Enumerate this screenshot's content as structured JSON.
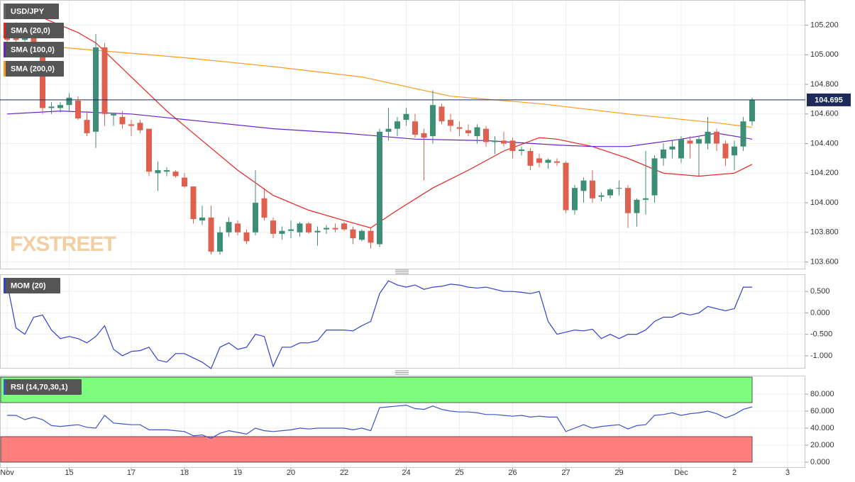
{
  "chart_data": [
    {
      "type": "candlestick",
      "name": "USD/JPY",
      "watermark": "FXSTREET",
      "up_color": "#3d8e77",
      "down_color": "#e0604f",
      "last_color": "#1d2b5b",
      "xlim": [
        -0.8,
        90
      ],
      "ylim": [
        103.55,
        105.37
      ],
      "yticks": [
        {
          "value": 103.6,
          "label": "103.600"
        },
        {
          "value": 103.8,
          "label": "103.800"
        },
        {
          "value": 104,
          "label": "104.000"
        },
        {
          "value": 104.2,
          "label": "104.200"
        },
        {
          "value": 104.4,
          "label": "104.400"
        },
        {
          "value": 104.6,
          "label": "104.600"
        },
        {
          "value": 104.8,
          "label": "104.800"
        },
        {
          "value": 105,
          "label": "105.000"
        },
        {
          "value": 105.2,
          "label": "105.200"
        }
      ],
      "ohlc": [
        [
          105.12,
          105.2,
          105.05,
          105.1
        ],
        [
          105.2,
          105.22,
          105.08,
          105.1
        ],
        [
          105.1,
          105.18,
          105.05,
          105.15
        ],
        [
          105.12,
          105.2,
          105.0,
          105.02
        ],
        [
          105.02,
          105.05,
          104.6,
          104.64
        ],
        [
          104.64,
          104.68,
          104.6,
          104.65
        ],
        [
          104.64,
          104.68,
          104.61,
          104.66
        ],
        [
          104.66,
          104.74,
          104.62,
          104.71
        ],
        [
          104.69,
          104.72,
          104.56,
          104.57
        ],
        [
          104.56,
          104.62,
          104.45,
          104.47
        ],
        [
          104.48,
          105.14,
          104.37,
          105.05
        ],
        [
          105.05,
          105.08,
          104.52,
          104.6
        ],
        [
          104.59,
          104.61,
          104.52,
          104.6
        ],
        [
          104.58,
          104.62,
          104.5,
          104.53
        ],
        [
          104.53,
          104.56,
          104.45,
          104.52
        ],
        [
          104.54,
          104.56,
          104.47,
          104.49
        ],
        [
          104.5,
          104.5,
          104.18,
          104.21
        ],
        [
          104.2,
          104.28,
          104.08,
          104.22
        ],
        [
          104.21,
          104.24,
          104.18,
          104.22
        ],
        [
          104.21,
          104.22,
          104.17,
          104.18
        ],
        [
          104.17,
          104.2,
          104.1,
          104.11
        ],
        [
          104.11,
          104.11,
          103.86,
          103.89
        ],
        [
          103.88,
          103.98,
          103.85,
          103.9
        ],
        [
          103.9,
          103.98,
          103.65,
          103.67
        ],
        [
          103.67,
          103.84,
          103.65,
          103.8
        ],
        [
          103.8,
          103.9,
          103.77,
          103.87
        ],
        [
          103.86,
          103.88,
          103.78,
          103.8
        ],
        [
          103.8,
          103.82,
          103.72,
          103.74
        ],
        [
          103.8,
          104.22,
          103.78,
          104.0
        ],
        [
          104.03,
          104.1,
          103.88,
          103.9
        ],
        [
          103.88,
          103.9,
          103.76,
          103.79
        ],
        [
          103.79,
          103.84,
          103.75,
          103.81
        ],
        [
          103.81,
          103.88,
          103.76,
          103.82
        ],
        [
          103.8,
          103.87,
          103.77,
          103.86
        ],
        [
          103.86,
          103.87,
          103.79,
          103.8
        ],
        [
          103.8,
          103.84,
          103.71,
          103.81
        ],
        [
          103.82,
          103.85,
          103.79,
          103.83
        ],
        [
          103.83,
          103.86,
          103.8,
          103.82
        ],
        [
          103.86,
          103.87,
          103.81,
          103.82
        ],
        [
          103.82,
          103.84,
          103.72,
          103.76
        ],
        [
          103.75,
          103.82,
          103.74,
          103.81
        ],
        [
          103.81,
          103.83,
          103.69,
          103.73
        ],
        [
          103.72,
          104.5,
          103.7,
          104.48
        ],
        [
          104.48,
          104.64,
          104.42,
          104.5
        ],
        [
          104.5,
          104.58,
          104.45,
          104.55
        ],
        [
          104.56,
          104.64,
          104.52,
          104.6
        ],
        [
          104.55,
          104.6,
          104.44,
          104.46
        ],
        [
          104.47,
          104.5,
          104.15,
          104.44
        ],
        [
          104.45,
          104.76,
          104.4,
          104.66
        ],
        [
          104.65,
          104.67,
          104.53,
          104.55
        ],
        [
          104.56,
          104.6,
          104.48,
          104.52
        ],
        [
          104.51,
          104.55,
          104.45,
          104.5
        ],
        [
          104.49,
          104.53,
          104.45,
          104.47
        ],
        [
          104.45,
          104.53,
          104.4,
          104.51
        ],
        [
          104.5,
          104.52,
          104.38,
          104.41
        ],
        [
          104.41,
          104.45,
          104.33,
          104.42
        ],
        [
          104.42,
          104.48,
          104.38,
          104.4
        ],
        [
          104.42,
          104.44,
          104.3,
          104.35
        ],
        [
          104.35,
          104.38,
          104.32,
          104.36
        ],
        [
          104.35,
          104.37,
          104.22,
          104.25
        ],
        [
          104.3,
          104.33,
          104.24,
          104.27
        ],
        [
          104.27,
          104.3,
          104.23,
          104.29
        ],
        [
          104.28,
          104.3,
          104.25,
          104.27
        ],
        [
          104.27,
          104.28,
          103.93,
          103.95
        ],
        [
          103.95,
          104.12,
          103.92,
          104.1
        ],
        [
          104.08,
          104.17,
          104.0,
          104.15
        ],
        [
          104.15,
          104.22,
          104.0,
          104.03
        ],
        [
          104.04,
          104.07,
          104.01,
          104.05
        ],
        [
          104.05,
          104.1,
          104.03,
          104.09
        ],
        [
          104.1,
          104.15,
          104.05,
          104.1
        ],
        [
          104.1,
          104.12,
          103.83,
          103.93
        ],
        [
          103.93,
          104.03,
          103.84,
          104.02
        ],
        [
          104.02,
          104.35,
          103.92,
          104.03
        ],
        [
          104.05,
          104.32,
          104.0,
          104.3
        ],
        [
          104.3,
          104.4,
          104.25,
          104.36
        ],
        [
          104.36,
          104.42,
          104.3,
          104.38
        ],
        [
          104.3,
          104.45,
          104.27,
          104.43
        ],
        [
          104.42,
          104.45,
          104.3,
          104.4
        ],
        [
          104.4,
          104.45,
          104.18,
          104.43
        ],
        [
          104.4,
          104.58,
          104.36,
          104.48
        ],
        [
          104.48,
          104.5,
          104.35,
          104.4
        ],
        [
          104.4,
          104.42,
          104.25,
          104.3
        ],
        [
          104.32,
          104.42,
          104.22,
          104.38
        ],
        [
          104.38,
          104.58,
          104.35,
          104.55
        ],
        [
          104.55,
          104.71,
          104.52,
          104.695
        ]
      ],
      "series": [
        {
          "name": "SMA (20,0)",
          "color": "#e8221f",
          "x": [
            0,
            4,
            8,
            10,
            14,
            18,
            22,
            26,
            30,
            34,
            38,
            41,
            44,
            48,
            52,
            56,
            60,
            62,
            66,
            70,
            74,
            78,
            82,
            84
          ],
          "values": [
            105.28,
            105.25,
            105.15,
            105.08,
            104.85,
            104.62,
            104.42,
            104.22,
            104.05,
            103.95,
            103.88,
            103.83,
            103.95,
            104.1,
            104.22,
            104.35,
            104.44,
            104.43,
            104.38,
            104.3,
            104.2,
            104.18,
            104.2,
            104.26
          ]
        },
        {
          "name": "SMA (100,0)",
          "color": "#6a1fd0",
          "x": [
            0,
            6,
            14,
            22,
            30,
            38,
            46,
            54,
            62,
            66,
            70,
            76,
            80,
            84
          ],
          "values": [
            104.6,
            104.62,
            104.6,
            104.55,
            104.5,
            104.47,
            104.43,
            104.42,
            104.39,
            104.38,
            104.38,
            104.43,
            104.47,
            104.43
          ]
        },
        {
          "name": "SMA (200,0)",
          "color": "#ff9a1a",
          "x": [
            0,
            10,
            20,
            30,
            40,
            50,
            60,
            70,
            80,
            84
          ],
          "values": [
            105.08,
            105.03,
            104.98,
            104.92,
            104.85,
            104.72,
            104.67,
            104.6,
            104.54,
            104.51
          ]
        }
      ]
    },
    {
      "type": "line",
      "xlim": [
        -0.8,
        90
      ],
      "ylim": [
        -1.3,
        0.9
      ],
      "yticks": [
        {
          "value": -1,
          "label": "-1.000"
        },
        {
          "value": -0.5,
          "label": "-0.500"
        },
        {
          "value": 0,
          "label": "0.000"
        },
        {
          "value": 0.5,
          "label": "0.500"
        }
      ],
      "series": [
        {
          "name": "MOM (20)",
          "color": "#2f3fd6",
          "values": [
            0.7,
            -0.35,
            -0.5,
            -0.1,
            -0.05,
            -0.4,
            -0.6,
            -0.55,
            -0.6,
            -0.7,
            -0.55,
            -0.3,
            -0.85,
            -1.0,
            -0.9,
            -0.88,
            -0.8,
            -1.1,
            -1.15,
            -0.95,
            -0.95,
            -1.05,
            -1.15,
            -1.3,
            -0.8,
            -0.7,
            -0.85,
            -0.8,
            -0.5,
            -0.55,
            -1.25,
            -0.8,
            -0.8,
            -0.7,
            -0.7,
            -0.65,
            -0.4,
            -0.4,
            -0.4,
            -0.42,
            -0.3,
            -0.2,
            0.45,
            0.75,
            0.65,
            0.6,
            0.65,
            0.55,
            0.6,
            0.62,
            0.67,
            0.65,
            0.6,
            0.58,
            0.6,
            0.55,
            0.5,
            0.5,
            0.48,
            0.45,
            0.5,
            -0.2,
            -0.5,
            -0.45,
            -0.4,
            -0.42,
            -0.38,
            -0.6,
            -0.5,
            -0.6,
            -0.5,
            -0.5,
            -0.4,
            -0.2,
            -0.1,
            -0.1,
            0.0,
            -0.05,
            0.0,
            0.15,
            0.1,
            0.05,
            0.1,
            0.6,
            0.6
          ]
        }
      ]
    },
    {
      "type": "line",
      "xlim": [
        -0.8,
        90
      ],
      "ylim": [
        -6.7,
        101.7
      ],
      "yticks": [
        {
          "value": 0,
          "label": "0.000"
        },
        {
          "value": 20,
          "label": "20.000"
        },
        {
          "value": 40,
          "label": "40.000"
        },
        {
          "value": 60,
          "label": "60.000"
        },
        {
          "value": 80,
          "label": "80.000"
        }
      ],
      "bands": [
        {
          "from": 70,
          "to": 100,
          "color": "#7dfc7d"
        },
        {
          "from": 0,
          "to": 30,
          "color": "#ff7f7f"
        }
      ],
      "xticks": [
        {
          "value": 0,
          "label": "Nov"
        },
        {
          "value": 7,
          "label": "15"
        },
        {
          "value": 14,
          "label": "17"
        },
        {
          "value": 20,
          "label": "18"
        },
        {
          "value": 26,
          "label": "19"
        },
        {
          "value": 32,
          "label": "20"
        },
        {
          "value": 38,
          "label": "22"
        },
        {
          "value": 45,
          "label": "24"
        },
        {
          "value": 51,
          "label": "25"
        },
        {
          "value": 57,
          "label": "26"
        },
        {
          "value": 63,
          "label": "27"
        },
        {
          "value": 69,
          "label": "29"
        },
        {
          "value": 76,
          "label": "Dec"
        },
        {
          "value": 82,
          "label": "2"
        },
        {
          "value": 88,
          "label": "3"
        }
      ],
      "series": [
        {
          "name": "RSI (14,70,30,1)",
          "color": "#3e55c8",
          "values": [
            55,
            55,
            50,
            53,
            50,
            43,
            42,
            43,
            44,
            41,
            40,
            55,
            46,
            45,
            44,
            44,
            38,
            38,
            38,
            37,
            36,
            31,
            32,
            28,
            34,
            37,
            35,
            33,
            40,
            37,
            36,
            37,
            38,
            40,
            39,
            40,
            40,
            40,
            40,
            38,
            40,
            37,
            64,
            65,
            66,
            67,
            63,
            62,
            66,
            62,
            60,
            59,
            59,
            58,
            56,
            56,
            55,
            54,
            55,
            53,
            54,
            53,
            53,
            36,
            40,
            44,
            40,
            42,
            43,
            44,
            39,
            43,
            44,
            55,
            56,
            58,
            55,
            57,
            58,
            60,
            57,
            52,
            56,
            62,
            65
          ]
        }
      ]
    }
  ]
}
